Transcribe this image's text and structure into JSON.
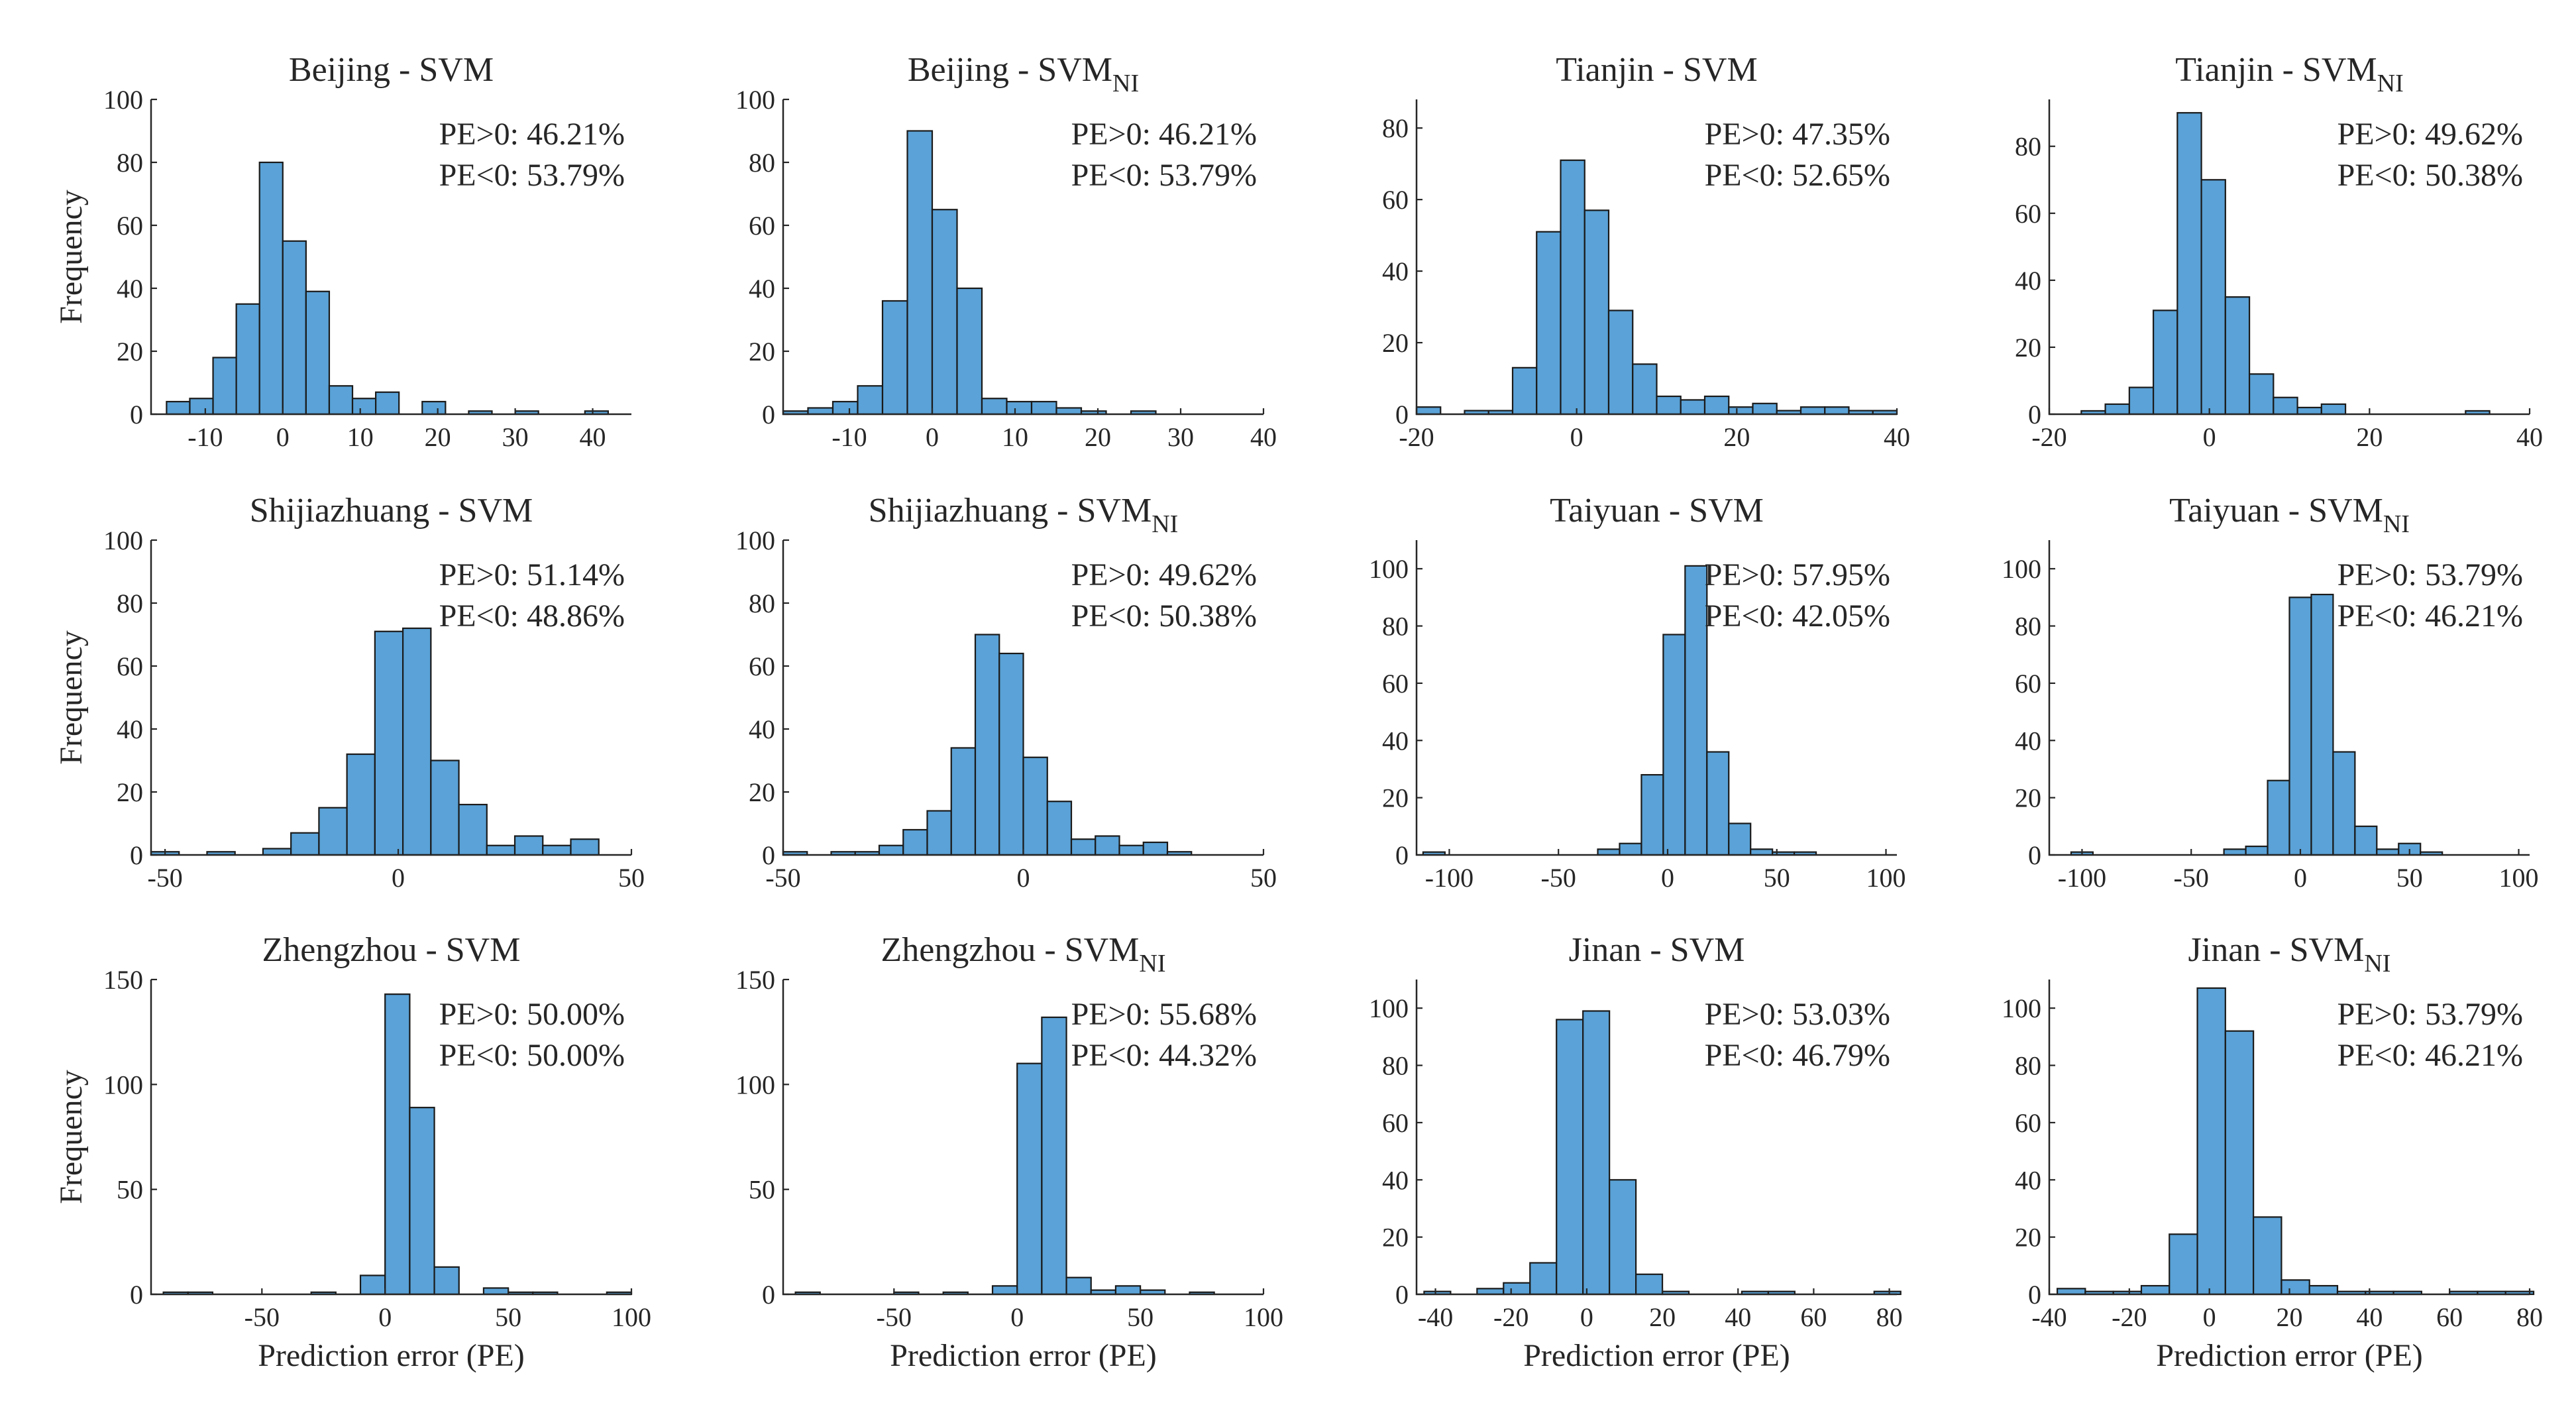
{
  "figure": {
    "ylabel": "Frequency",
    "xlabel": "Prediction error (PE)"
  },
  "chart_data": [
    {
      "type": "bar",
      "title": "Beijing - SVM",
      "title_sub": "",
      "xlim": [
        -17,
        45
      ],
      "ylim": [
        0,
        100
      ],
      "xticks": [
        -10,
        0,
        10,
        20,
        30,
        40
      ],
      "yticks": [
        0,
        20,
        40,
        60,
        80,
        100
      ],
      "bin_start": -15,
      "bin_width": 3,
      "counts": [
        4,
        5,
        18,
        35,
        80,
        55,
        39,
        9,
        5,
        7,
        0,
        4,
        0,
        1,
        0,
        1,
        0,
        0,
        1
      ],
      "annotations": [
        "PE>0: 46.21%",
        "PE<0: 53.79%"
      ]
    },
    {
      "type": "bar",
      "title": "Beijing - SVM",
      "title_sub": "NI",
      "xlim": [
        -18,
        40
      ],
      "ylim": [
        0,
        100
      ],
      "xticks": [
        -10,
        0,
        10,
        20,
        30,
        40
      ],
      "yticks": [
        0,
        20,
        40,
        60,
        80,
        100
      ],
      "bin_start": -18,
      "bin_width": 3,
      "counts": [
        1,
        2,
        4,
        9,
        36,
        90,
        65,
        40,
        5,
        4,
        4,
        2,
        1,
        0,
        1,
        0
      ],
      "annotations": [
        "PE>0: 46.21%",
        "PE<0: 53.79%"
      ]
    },
    {
      "type": "bar",
      "title": "Tianjin - SVM",
      "title_sub": "",
      "xlim": [
        -20,
        40
      ],
      "ylim": [
        0,
        88
      ],
      "xticks": [
        -20,
        0,
        20,
        40
      ],
      "yticks": [
        0,
        20,
        40,
        60,
        80
      ],
      "bin_start": -20,
      "bin_width": 3,
      "counts": [
        2,
        0,
        1,
        1,
        13,
        51,
        71,
        57,
        29,
        14,
        5,
        4,
        5,
        2,
        3,
        1,
        2,
        2,
        1,
        1
      ],
      "annotations": [
        "PE>0: 47.35%",
        "PE<0: 52.65%"
      ]
    },
    {
      "type": "bar",
      "title": "Tianjin - SVM",
      "title_sub": "NI",
      "xlim": [
        -20,
        40
      ],
      "ylim": [
        0,
        94
      ],
      "xticks": [
        -20,
        0,
        20,
        40
      ],
      "yticks": [
        0,
        20,
        40,
        60,
        80
      ],
      "bin_start": -16,
      "bin_width": 3,
      "counts": [
        1,
        3,
        8,
        31,
        90,
        70,
        35,
        12,
        5,
        2,
        3,
        0,
        0,
        0,
        0,
        0,
        1
      ],
      "annotations": [
        "PE>0: 49.62%",
        "PE<0: 50.38%"
      ]
    },
    {
      "type": "bar",
      "title": "Shijiazhuang - SVM",
      "title_sub": "",
      "xlim": [
        -53,
        50
      ],
      "ylim": [
        0,
        100
      ],
      "xticks": [
        -50,
        0,
        50
      ],
      "yticks": [
        0,
        20,
        40,
        60,
        80,
        100
      ],
      "bin_start": -53,
      "bin_width": 6,
      "counts": [
        1,
        0,
        1,
        0,
        2,
        7,
        15,
        32,
        71,
        72,
        30,
        16,
        3,
        6,
        3,
        5
      ],
      "annotations": [
        "PE>0: 51.14%",
        "PE<0: 48.86%"
      ]
    },
    {
      "type": "bar",
      "title": "Shijiazhuang - SVM",
      "title_sub": "NI",
      "xlim": [
        -50,
        50
      ],
      "ylim": [
        0,
        100
      ],
      "xticks": [
        -50,
        0,
        50
      ],
      "yticks": [
        0,
        20,
        40,
        60,
        80,
        100
      ],
      "bin_start": -50,
      "bin_width": 5,
      "counts": [
        1,
        0,
        1,
        1,
        3,
        8,
        14,
        34,
        70,
        64,
        31,
        17,
        5,
        6,
        3,
        4,
        1
      ],
      "annotations": [
        "PE>0: 49.62%",
        "PE<0: 50.38%"
      ]
    },
    {
      "type": "bar",
      "title": "Taiyuan - SVM",
      "title_sub": "",
      "xlim": [
        -115,
        105
      ],
      "ylim": [
        0,
        110
      ],
      "xticks": [
        -100,
        -50,
        0,
        50,
        100
      ],
      "yticks": [
        0,
        20,
        40,
        60,
        80,
        100
      ],
      "bin_start": -112,
      "bin_width": 10,
      "counts": [
        1,
        0,
        0,
        0,
        0,
        0,
        0,
        0,
        2,
        4,
        28,
        77,
        101,
        36,
        11,
        2,
        1,
        1,
        0,
        0,
        0
      ],
      "annotations": [
        "PE>0: 57.95%",
        "PE<0: 42.05%"
      ]
    },
    {
      "type": "bar",
      "title": "Taiyuan - SVM",
      "title_sub": "NI",
      "xlim": [
        -115,
        105
      ],
      "ylim": [
        0,
        110
      ],
      "xticks": [
        -100,
        -50,
        0,
        50,
        100
      ],
      "yticks": [
        0,
        20,
        40,
        60,
        80,
        100
      ],
      "bin_start": -105,
      "bin_width": 10,
      "counts": [
        1,
        0,
        0,
        0,
        0,
        0,
        0,
        2,
        3,
        26,
        90,
        91,
        36,
        10,
        2,
        4,
        1,
        0,
        0,
        0,
        0
      ],
      "annotations": [
        "PE>0: 53.79%",
        "PE<0: 46.21%"
      ]
    },
    {
      "type": "bar",
      "title": "Zhengzhou - SVM",
      "title_sub": "",
      "xlim": [
        -95,
        100
      ],
      "ylim": [
        0,
        150
      ],
      "xticks": [
        -50,
        0,
        50,
        100
      ],
      "yticks": [
        0,
        50,
        100,
        150
      ],
      "bin_start": -90,
      "bin_width": 10,
      "counts": [
        1,
        1,
        0,
        0,
        0,
        0,
        1,
        0,
        9,
        143,
        89,
        13,
        0,
        3,
        1,
        1,
        0,
        0,
        1
      ],
      "annotations": [
        "PE>0: 50.00%",
        "PE<0: 50.00%"
      ]
    },
    {
      "type": "bar",
      "title": "Zhengzhou - SVM",
      "title_sub": "NI",
      "xlim": [
        -95,
        100
      ],
      "ylim": [
        0,
        150
      ],
      "xticks": [
        -50,
        0,
        50,
        100
      ],
      "yticks": [
        0,
        50,
        100,
        150
      ],
      "bin_start": -90,
      "bin_width": 10,
      "counts": [
        1,
        0,
        0,
        0,
        1,
        0,
        1,
        0,
        4,
        110,
        132,
        8,
        2,
        4,
        2,
        0,
        1
      ],
      "annotations": [
        "PE>0: 55.68%",
        "PE<0: 44.32%"
      ]
    },
    {
      "type": "bar",
      "title": "Jinan - SVM",
      "title_sub": "",
      "xlim": [
        -45,
        82
      ],
      "ylim": [
        0,
        110
      ],
      "xticks": [
        -40,
        -20,
        0,
        20,
        40,
        60,
        80
      ],
      "yticks": [
        0,
        20,
        40,
        60,
        80,
        100
      ],
      "bin_start": -43,
      "bin_width": 7,
      "counts": [
        1,
        0,
        2,
        4,
        11,
        96,
        99,
        40,
        7,
        1,
        0,
        0,
        1,
        1,
        0,
        0,
        0,
        1
      ],
      "annotations": [
        "PE>0: 53.03%",
        "PE<0: 46.79%"
      ]
    },
    {
      "type": "bar",
      "title": "Jinan - SVM",
      "title_sub": "NI",
      "xlim": [
        -40,
        80
      ],
      "ylim": [
        0,
        110
      ],
      "xticks": [
        -40,
        -20,
        0,
        20,
        40,
        60,
        80
      ],
      "yticks": [
        0,
        20,
        40,
        60,
        80,
        100
      ],
      "bin_start": -38,
      "bin_width": 7,
      "counts": [
        2,
        1,
        1,
        3,
        21,
        107,
        92,
        27,
        5,
        3,
        1,
        1,
        1,
        0,
        1,
        1,
        1
      ],
      "annotations": [
        "PE>0: 53.79%",
        "PE<0: 46.21%"
      ]
    }
  ]
}
